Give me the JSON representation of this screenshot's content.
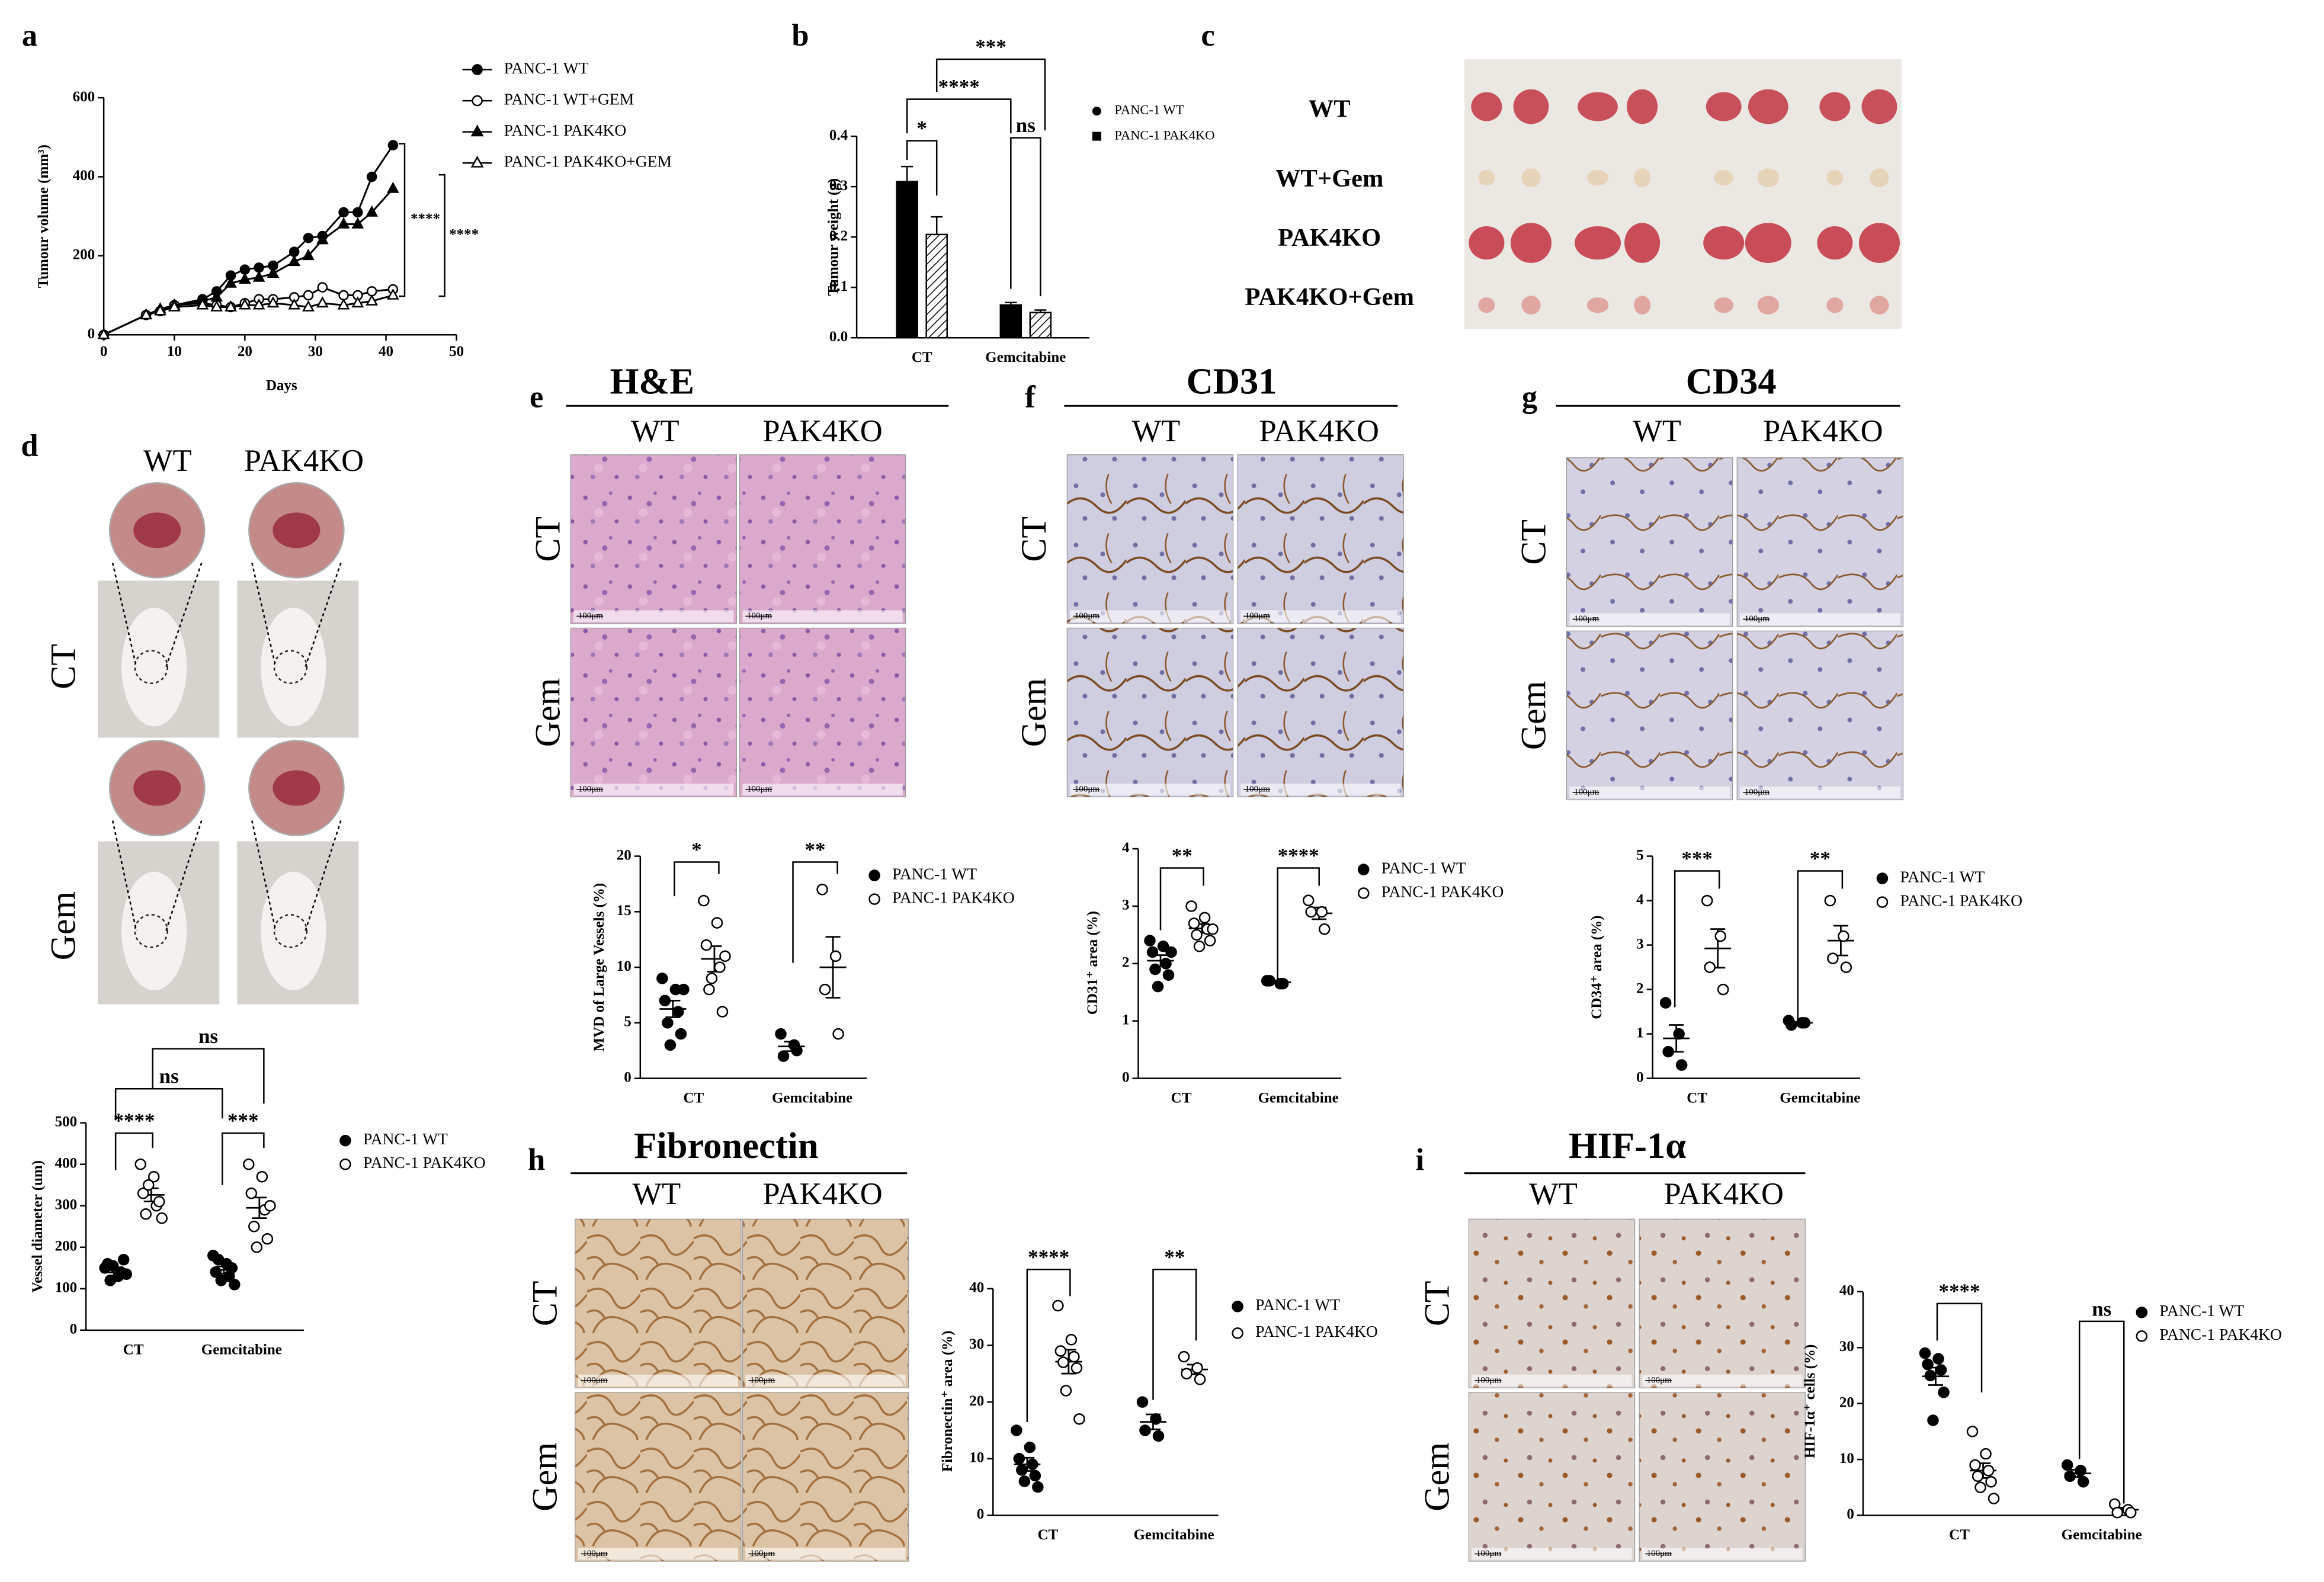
{
  "photo_panels": [
    {
      "letter": "c",
      "row_labels": [
        "WT",
        "WT+Gem",
        "PAK4KO",
        "PAK4KO+Gem"
      ]
    },
    {
      "letter": "d",
      "column_labels": [
        "WT",
        "PAK4KO"
      ],
      "row_labels": [
        "CT",
        "Gem"
      ]
    },
    {
      "letter": "e",
      "title": "H&E",
      "column_labels": [
        "WT",
        "PAK4KO"
      ],
      "row_labels": [
        "CT",
        "Gem"
      ],
      "scale_bar": "100μm"
    },
    {
      "letter": "f",
      "title": "CD31",
      "column_labels": [
        "WT",
        "PAK4KO"
      ],
      "row_labels": [
        "CT",
        "Gem"
      ],
      "scale_bar": "100μm"
    },
    {
      "letter": "g",
      "title": "CD34",
      "column_labels": [
        "WT",
        "PAK4KO"
      ],
      "row_labels": [
        "CT",
        "Gem"
      ],
      "scale_bar": "100μm"
    },
    {
      "letter": "h",
      "title": "Fibronectin",
      "column_labels": [
        "WT",
        "PAK4KO"
      ],
      "row_labels": [
        "CT",
        "Gem"
      ],
      "scale_bar": "100μm"
    },
    {
      "letter": "i",
      "title": "HIF-1α",
      "column_labels": [
        "WT",
        "PAK4KO"
      ],
      "row_labels": [
        "CT",
        "Gem"
      ],
      "scale_bar": "100μm"
    }
  ],
  "chart_data": [
    {
      "type": "line",
      "panel": "a",
      "x_label": "Days",
      "y_label": "Tumour volume (mm³)",
      "x": [
        0,
        6,
        8,
        10,
        14,
        16,
        18,
        20,
        22,
        24,
        27,
        29,
        31,
        34,
        36,
        38,
        41
      ],
      "series": [
        {
          "name": "PANC-1 WT",
          "marker": "filled-circle",
          "values": [
            0,
            50,
            60,
            75,
            90,
            110,
            150,
            165,
            170,
            175,
            210,
            245,
            250,
            310,
            310,
            400,
            480
          ]
        },
        {
          "name": "PANC-1 WT+GEM",
          "marker": "open-circle",
          "values": [
            0,
            50,
            60,
            75,
            80,
            75,
            70,
            80,
            90,
            90,
            95,
            100,
            120,
            100,
            100,
            110,
            115
          ]
        },
        {
          "name": "PANC-1 PAK4KO",
          "marker": "filled-triangle",
          "values": [
            0,
            50,
            65,
            75,
            85,
            95,
            130,
            140,
            145,
            155,
            185,
            200,
            240,
            280,
            280,
            310,
            370
          ]
        },
        {
          "name": "PANC-1 PAK4KO+GEM",
          "marker": "open-triangle",
          "values": [
            0,
            50,
            60,
            70,
            75,
            70,
            70,
            75,
            75,
            80,
            75,
            70,
            80,
            75,
            80,
            85,
            100
          ]
        }
      ],
      "xlim": [
        0,
        50
      ],
      "xticks": [
        0,
        10,
        20,
        30,
        40,
        50
      ],
      "ylim": [
        0,
        600
      ],
      "yticks": [
        0,
        200,
        400,
        600
      ],
      "annotations": [
        "****",
        "****"
      ]
    },
    {
      "type": "bar",
      "panel": "b",
      "y_label": "Tumour weight (g)",
      "categories": [
        "CT",
        "Gemcitabine"
      ],
      "series": [
        {
          "name": "PANC-1 WT",
          "marker": "filled-circle",
          "color": "#000000",
          "values": [
            0.31,
            0.065
          ],
          "errors": [
            0.03,
            0.005
          ]
        },
        {
          "name": "PANC-1 PAK4KO",
          "marker": "filled-square",
          "color": "#000000",
          "hatch": true,
          "values": [
            0.205,
            0.05
          ],
          "errors": [
            0.035,
            0.005
          ]
        }
      ],
      "ylim": [
        0,
        0.4
      ],
      "yticks": [
        {
          "value": 0,
          "label": "0.0"
        },
        0.1,
        0.2,
        0.3,
        0.4
      ],
      "annotations": [
        "*",
        "****",
        "***",
        "ns"
      ]
    },
    {
      "type": "strip",
      "y_label": "Vessel diameter (um)",
      "categories": [
        "CT",
        "Gemcitabine"
      ],
      "series": [
        {
          "name": "PANC-1 WT",
          "marker": "filled-circle",
          "values": [
            [
              150,
              130,
              160,
              140,
              120,
              170,
              155,
              135
            ],
            [
              180,
              160,
              140,
              130,
              170,
              150,
              120,
              110
            ]
          ]
        },
        {
          "name": "PANC-1 PAK4KO",
          "marker": "open-circle",
          "values": [
            [
              400,
              370,
              330,
              300,
              280,
              310,
              350,
              270
            ],
            [
              400,
              370,
              330,
              290,
              250,
              220,
              200,
              300
            ]
          ]
        }
      ],
      "ylim": [
        0,
        500
      ],
      "yticks": [
        0,
        100,
        200,
        300,
        400,
        500
      ],
      "annotations": [
        "****",
        "***",
        "ns",
        "ns"
      ]
    },
    {
      "type": "strip",
      "y_label": "MVD of Large Vessels (%)",
      "categories": [
        "CT",
        "Gemcitabine"
      ],
      "series": [
        {
          "name": "PANC-1 WT",
          "marker": "filled-circle",
          "values": [
            [
              9,
              8,
              7,
              6,
              5,
              4,
              3,
              8
            ],
            [
              4,
              3,
              2,
              2.5
            ]
          ]
        },
        {
          "name": "PANC-1 PAK4KO",
          "marker": "open-circle",
          "values": [
            [
              16,
              14,
              12,
              10,
              8,
              6,
              9,
              11
            ],
            [
              17,
              11,
              8,
              4
            ]
          ]
        }
      ],
      "ylim": [
        0,
        20
      ],
      "yticks": [
        0,
        5,
        10,
        15,
        20
      ],
      "annotations": [
        "*",
        "**"
      ]
    },
    {
      "type": "strip",
      "y_label": "CD31⁺ area (%)",
      "categories": [
        "CT",
        "Gemcitabine"
      ],
      "series": [
        {
          "name": "PANC-1 WT",
          "marker": "filled-circle",
          "values": [
            [
              2.4,
              2.3,
              2.2,
              2.0,
              1.9,
              1.8,
              1.6,
              2.2
            ],
            [
              1.7,
              1.65,
              1.7,
              1.65
            ]
          ]
        },
        {
          "name": "PANC-1 PAK4KO",
          "marker": "open-circle",
          "values": [
            [
              3.0,
              2.8,
              2.7,
              2.6,
              2.5,
              2.4,
              2.3,
              2.6
            ],
            [
              3.1,
              2.9,
              2.9,
              2.6
            ]
          ]
        }
      ],
      "ylim": [
        0,
        4
      ],
      "yticks": [
        0,
        1,
        2,
        3,
        4
      ],
      "annotations": [
        "**",
        "****"
      ]
    },
    {
      "type": "strip",
      "y_label": "CD34⁺ area (%)",
      "categories": [
        "CT",
        "Gemcitabine"
      ],
      "series": [
        {
          "name": "PANC-1 WT",
          "marker": "filled-circle",
          "values": [
            [
              1.7,
              1.0,
              0.6,
              0.3
            ],
            [
              1.3,
              1.25,
              1.2,
              1.25
            ]
          ]
        },
        {
          "name": "PANC-1 PAK4KO",
          "marker": "open-circle",
          "values": [
            [
              4.0,
              3.2,
              2.5,
              2.0
            ],
            [
              4.0,
              3.2,
              2.7,
              2.5
            ]
          ]
        }
      ],
      "ylim": [
        0,
        5
      ],
      "yticks": [
        0,
        1,
        2,
        3,
        4,
        5
      ],
      "annotations": [
        "***",
        "**"
      ]
    },
    {
      "type": "strip",
      "y_label": "Fibronectin⁺ area (%)",
      "categories": [
        "CT",
        "Gemcitabine"
      ],
      "series": [
        {
          "name": "PANC-1 WT",
          "marker": "filled-circle",
          "values": [
            [
              15,
              12,
              10,
              9,
              8,
              7,
              6,
              5
            ],
            [
              20,
              17,
              15,
              14
            ]
          ]
        },
        {
          "name": "PANC-1 PAK4KO",
          "marker": "open-circle",
          "values": [
            [
              37,
              31,
              29,
              28,
              27,
              26,
              22,
              17
            ],
            [
              28,
              26,
              25,
              24
            ]
          ]
        }
      ],
      "ylim": [
        0,
        40
      ],
      "yticks": [
        0,
        10,
        20,
        30,
        40
      ],
      "annotations": [
        "****",
        "**"
      ]
    },
    {
      "type": "strip",
      "y_label": "HIF-1α⁺ cells (%)",
      "categories": [
        "CT",
        "Gemcitabine"
      ],
      "series": [
        {
          "name": "PANC-1 WT",
          "marker": "filled-circle",
          "values": [
            [
              29,
              28,
              27,
              26,
              25,
              22,
              17
            ],
            [
              9,
              8,
              7,
              6
            ]
          ]
        },
        {
          "name": "PANC-1 PAK4KO",
          "marker": "open-circle",
          "values": [
            [
              15,
              11,
              9,
              8,
              7,
              6,
              5,
              3
            ],
            [
              2,
              1,
              0.5,
              0.5
            ]
          ]
        }
      ],
      "ylim": [
        0,
        40
      ],
      "yticks": [
        0,
        10,
        20,
        30,
        40
      ],
      "annotations": [
        "****",
        "ns"
      ]
    }
  ]
}
